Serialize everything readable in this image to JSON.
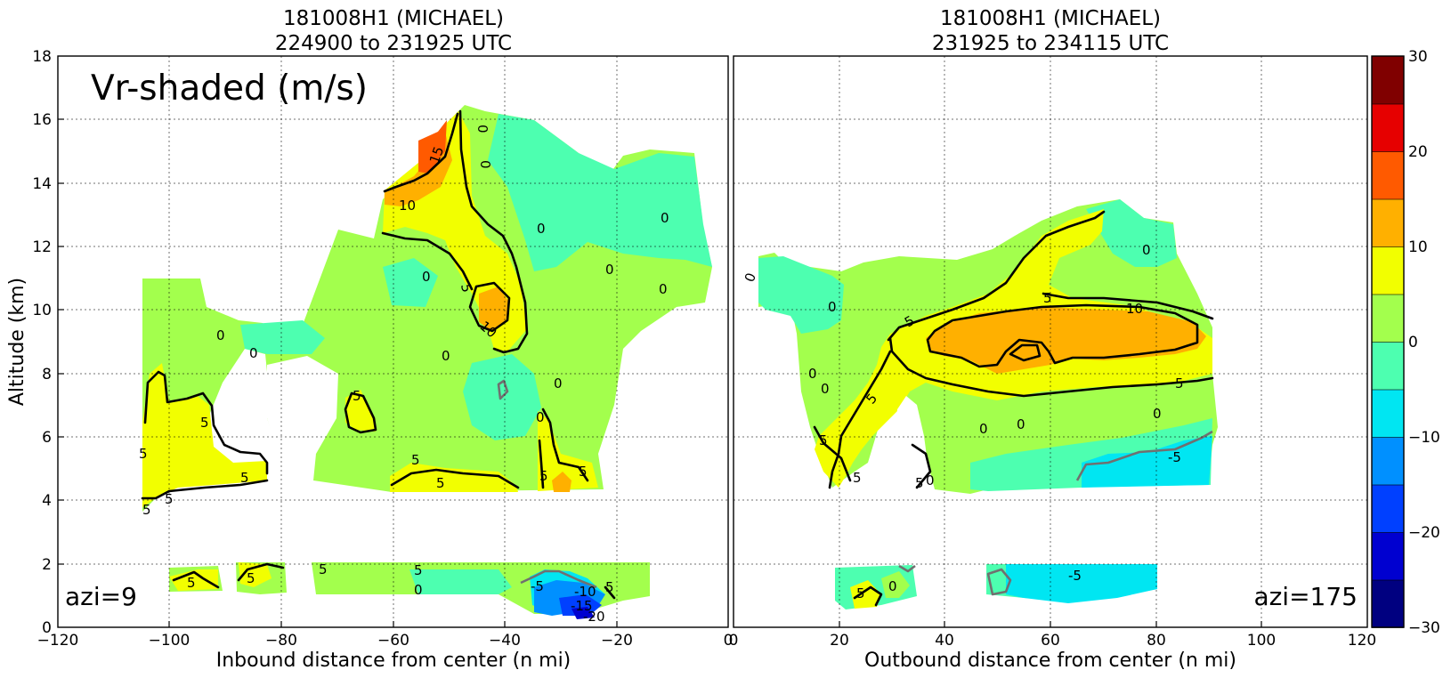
{
  "chart_data": [
    {
      "type": "heatmap",
      "panel": "left",
      "title_line1": "181008H1 (MICHAEL)",
      "title_line2": "224900 to 231925 UTC",
      "xlabel": "Inbound distance from center (n mi)",
      "ylabel": "Altitude (km)",
      "annotation": "Vr-shaded (m/s)",
      "azimuth_label": "azi=9",
      "xlim": [
        -120,
        0
      ],
      "ylim": [
        0,
        18
      ],
      "xticks": [
        "−120",
        "−100",
        "−80",
        "−60",
        "−40",
        "−20",
        "0"
      ],
      "yticks": [
        "0",
        "2",
        "4",
        "6",
        "8",
        "10",
        "12",
        "14",
        "16",
        "18"
      ],
      "grid": true,
      "contour_labels": [
        "15",
        "10",
        "0",
        "0",
        "0",
        "0",
        "5",
        "10",
        "0",
        "0",
        "0",
        "0",
        "0",
        "0",
        "5",
        "5",
        "5",
        "5",
        "5",
        "5",
        "0",
        "5",
        "5",
        "0",
        "5",
        "5",
        "5",
        "5",
        "5",
        "0",
        "5",
        "5",
        "-5",
        "-10",
        "-15",
        "-20"
      ]
    },
    {
      "type": "heatmap",
      "panel": "right",
      "title_line1": "181008H1 (MICHAEL)",
      "title_line2": "231925 to 234115 UTC",
      "xlabel": "Outbound distance from center (n mi)",
      "azimuth_label": "azi=175",
      "xlim": [
        0,
        120
      ],
      "ylim": [
        0,
        18
      ],
      "xticks": [
        "0",
        "20",
        "40",
        "60",
        "80",
        "100",
        "120"
      ],
      "grid": true,
      "contour_labels": [
        "0",
        "0",
        "5",
        "10",
        "5",
        "5",
        "0",
        "0",
        "0",
        "0",
        "5",
        "0",
        "0",
        "5",
        "5",
        "0",
        "5",
        "0",
        "5",
        "-5",
        "-5"
      ]
    }
  ],
  "colorbar": {
    "range": [
      -30,
      30
    ],
    "ticks": [
      "−30",
      "−20",
      "−10",
      "0",
      "10",
      "20",
      "30"
    ],
    "colors": [
      "#000080",
      "#0000d0",
      "#0040ff",
      "#0090ff",
      "#00e6f2",
      "#4dffb0",
      "#a3ff4d",
      "#f2ff00",
      "#ffb000",
      "#ff5a00",
      "#e60000",
      "#800000"
    ]
  }
}
